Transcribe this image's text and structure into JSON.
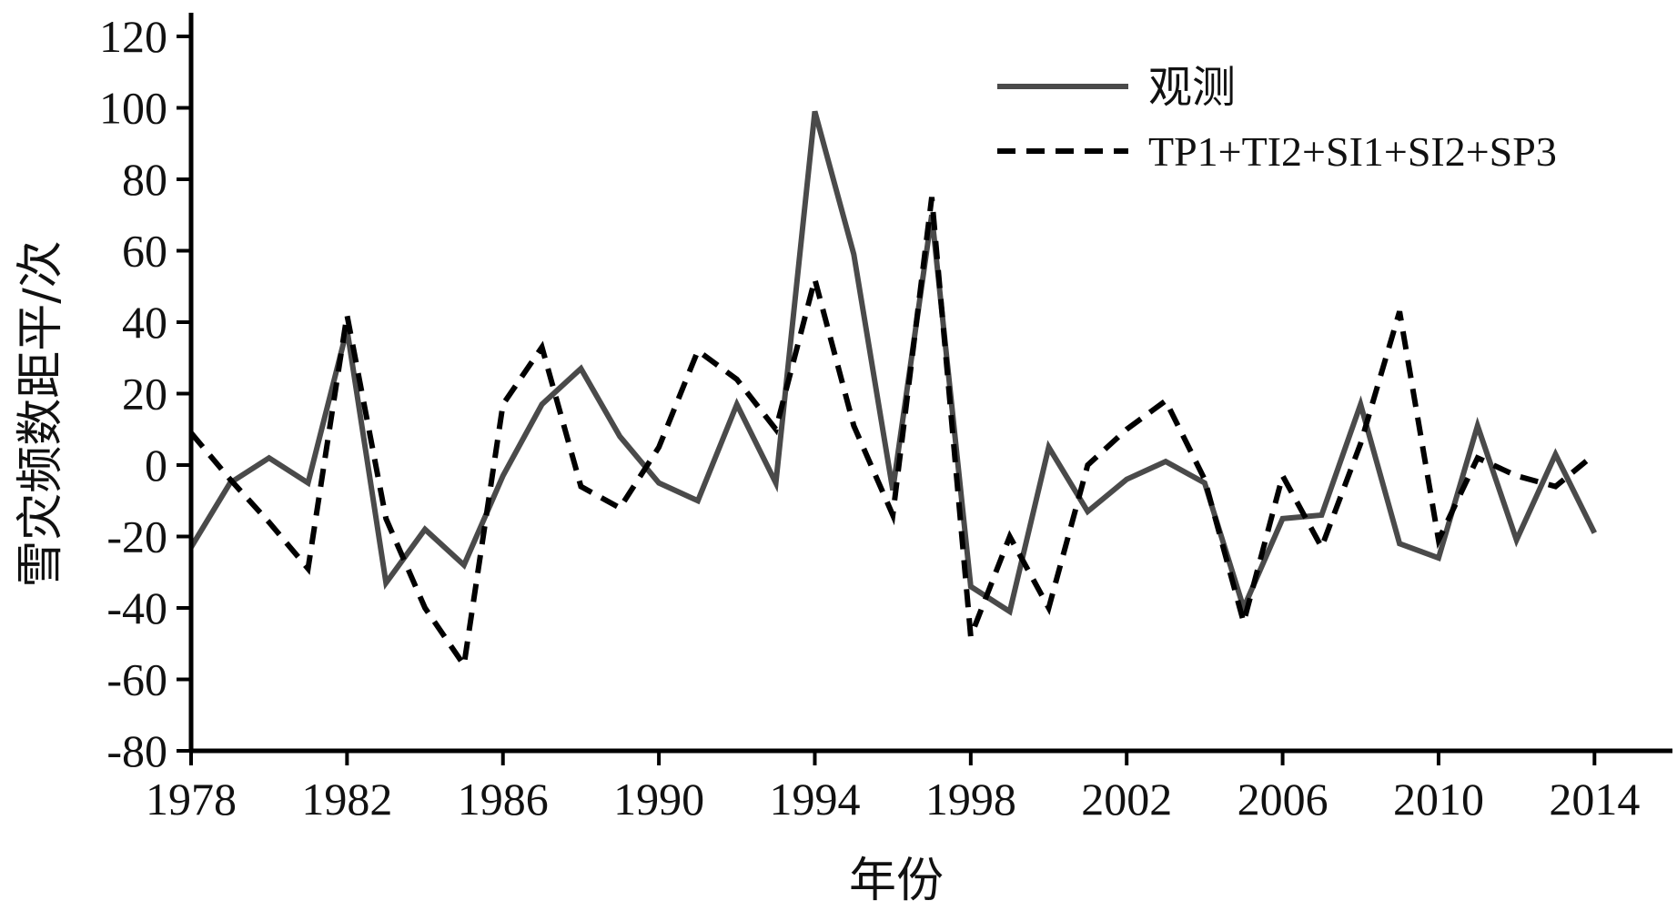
{
  "chart_data": {
    "type": "line",
    "xlabel": "年份",
    "ylabel": "雪灾频数距平/次",
    "xlim": [
      1978,
      2016
    ],
    "ylim": [
      -80,
      120
    ],
    "xticks": [
      1978,
      1982,
      1986,
      1990,
      1994,
      1998,
      2002,
      2006,
      2010,
      2014
    ],
    "yticks": [
      -80,
      -60,
      -40,
      -20,
      0,
      20,
      40,
      60,
      80,
      100,
      120
    ],
    "grid": false,
    "legend_position": "top-right",
    "x": [
      1978,
      1979,
      1980,
      1981,
      1982,
      1983,
      1984,
      1985,
      1986,
      1987,
      1988,
      1989,
      1990,
      1991,
      1992,
      1993,
      1994,
      1995,
      1996,
      1997,
      1998,
      1999,
      2000,
      2001,
      2002,
      2003,
      2004,
      2005,
      2006,
      2007,
      2008,
      2009,
      2010,
      2011,
      2012,
      2013,
      2014
    ],
    "series": [
      {
        "name": "观测",
        "style": "solid",
        "color": "#4a4a4a",
        "values": [
          -23,
          -5,
          2,
          -5,
          38,
          -33,
          -18,
          -28,
          -3,
          17,
          27,
          8,
          -5,
          -10,
          17,
          -5,
          99,
          59,
          -7,
          70,
          -34,
          -41,
          5,
          -13,
          -4,
          1,
          -5,
          -40,
          -15,
          -14,
          17,
          -22,
          -26,
          11,
          -21,
          3,
          -19
        ]
      },
      {
        "name": "TP1+TI2+SI1+SI2+SP3",
        "style": "dashed",
        "color": "#000000",
        "values": [
          9,
          -4,
          -16,
          -29,
          42,
          -15,
          -40,
          -56,
          17,
          33,
          -6,
          -12,
          5,
          32,
          24,
          10,
          52,
          11,
          -14,
          75,
          -48,
          -20,
          -40,
          0,
          10,
          18,
          -4,
          -44,
          -3,
          -23,
          6,
          43,
          -21,
          2,
          -3,
          -6,
          3
        ]
      }
    ]
  }
}
